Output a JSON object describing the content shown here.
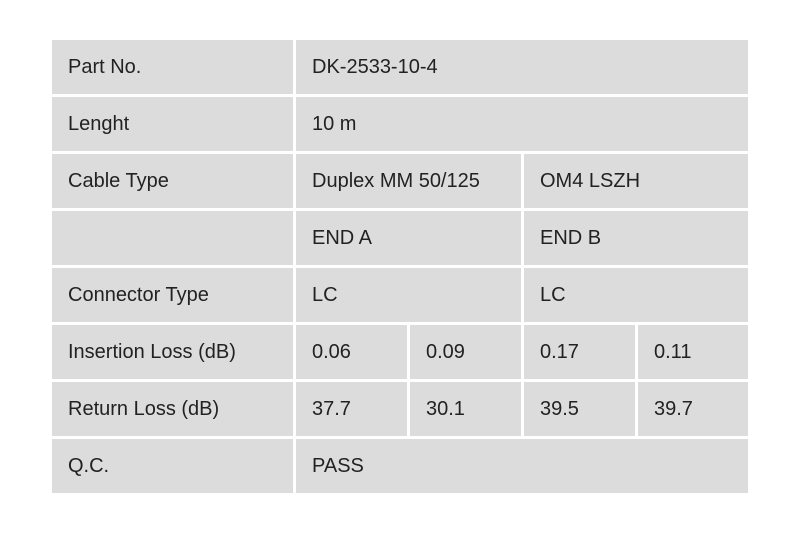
{
  "rows": {
    "part_no": {
      "label": "Part No.",
      "value": "DK-2533-10-4"
    },
    "length": {
      "label": "Lenght",
      "value": "10 m"
    },
    "cable_type": {
      "label": "Cable Type",
      "value_a": "Duplex MM 50/125",
      "value_b": "OM4 LSZH"
    },
    "ends": {
      "label": "",
      "end_a": "END A",
      "end_b": "END B"
    },
    "connector_type": {
      "label": "Connector Type",
      "end_a": "LC",
      "end_b": "LC"
    },
    "insertion_loss": {
      "label": "Insertion Loss (dB)",
      "values": [
        "0.06",
        "0.09",
        "0.17",
        "0.11"
      ]
    },
    "return_loss": {
      "label": "Return Loss (dB)",
      "values": [
        "37.7",
        "30.1",
        "39.5",
        "39.7"
      ]
    },
    "qc": {
      "label": "Q.C.",
      "value": "PASS"
    }
  }
}
